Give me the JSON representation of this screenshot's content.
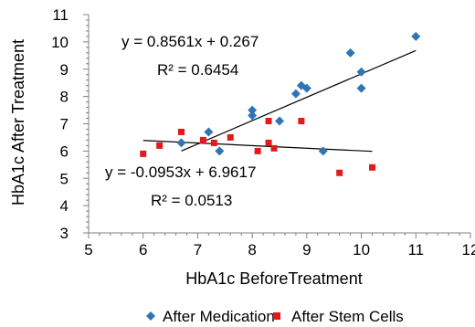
{
  "chart_data": {
    "type": "scatter",
    "title": "",
    "xlabel": "HbA1c BeforeTreatment",
    "ylabel": "HbA1c After Treatment",
    "xlim": [
      5,
      12
    ],
    "ylim": [
      3,
      11
    ],
    "x_ticks": [
      "5",
      "6",
      "7",
      "8",
      "9",
      "10",
      "11",
      "12"
    ],
    "y_ticks": [
      "3",
      "4",
      "5",
      "6",
      "7",
      "8",
      "9",
      "10",
      "11"
    ],
    "grid": false,
    "minor_ticks": true,
    "legend_position": "bottom",
    "series": [
      {
        "name": "After Medication",
        "marker": "diamond",
        "color": "#2E75B6",
        "points": [
          [
            6.7,
            6.3
          ],
          [
            7.2,
            6.7
          ],
          [
            7.4,
            6.0
          ],
          [
            8.0,
            7.5
          ],
          [
            8.0,
            7.3
          ],
          [
            8.5,
            7.1
          ],
          [
            8.8,
            8.1
          ],
          [
            8.9,
            8.4
          ],
          [
            9.0,
            8.3
          ],
          [
            9.3,
            6.0
          ],
          [
            9.8,
            9.6
          ],
          [
            10.0,
            8.9
          ],
          [
            10.0,
            8.3
          ],
          [
            11.0,
            10.2
          ]
        ],
        "trendline": {
          "slope": 0.8561,
          "intercept": 0.267,
          "x_range": [
            6.7,
            11.0
          ],
          "equation": "y = 0.8561x + 0.267",
          "r_squared": "R² = 0.6454"
        }
      },
      {
        "name": "After Stem Cells",
        "marker": "square",
        "color": "#E31A1C",
        "points": [
          [
            6.0,
            5.9
          ],
          [
            6.3,
            6.2
          ],
          [
            6.7,
            6.7
          ],
          [
            7.1,
            6.4
          ],
          [
            7.3,
            6.3
          ],
          [
            7.6,
            6.5
          ],
          [
            8.1,
            6.0
          ],
          [
            8.3,
            7.1
          ],
          [
            8.3,
            6.3
          ],
          [
            8.4,
            6.1
          ],
          [
            8.9,
            7.1
          ],
          [
            9.6,
            5.2
          ],
          [
            10.2,
            5.4
          ]
        ],
        "trendline": {
          "slope": -0.0953,
          "intercept": 6.9617,
          "x_range": [
            6.0,
            10.2
          ],
          "equation": "y = -0.0953x + 6.9617",
          "r_squared": "R² = 0.0513"
        }
      }
    ]
  }
}
